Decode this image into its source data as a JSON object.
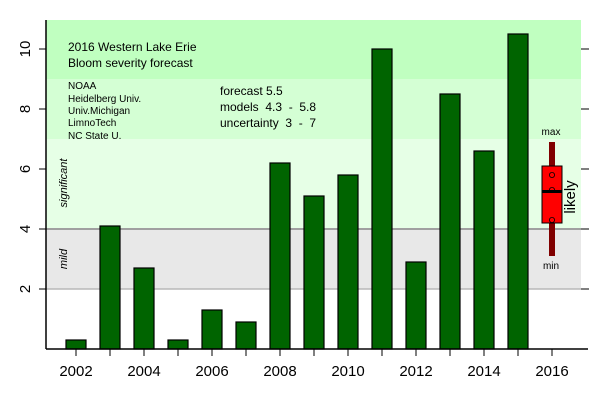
{
  "chart_data": {
    "type": "bar",
    "title": "2016 Western Lake Erie",
    "subtitle": "Bloom severity forecast",
    "xlabel": "",
    "ylabel": "",
    "categories": [
      "2002",
      "2003",
      "2004",
      "2005",
      "2006",
      "2007",
      "2008",
      "2009",
      "2010",
      "2011",
      "2012",
      "2013",
      "2014",
      "2015",
      "2016"
    ],
    "x_tick_labels": [
      "2002",
      "2004",
      "2006",
      "2008",
      "2010",
      "2012",
      "2014",
      "2016"
    ],
    "y_ticks": [
      2,
      4,
      6,
      8,
      10
    ],
    "y_tick_labels": [
      "2",
      "4",
      "6",
      "8",
      "10"
    ],
    "ylim": [
      0,
      11
    ],
    "grid": false,
    "series": [
      {
        "name": "Bloom severity",
        "color": "#006400",
        "values": [
          0.3,
          4.1,
          2.7,
          0.3,
          1.3,
          0.9,
          6.2,
          5.1,
          5.8,
          10.0,
          2.9,
          8.5,
          6.6,
          10.5,
          null
        ]
      }
    ],
    "background_bands": [
      {
        "from": 0,
        "to": 2,
        "color": "#FFFFFF",
        "label": ""
      },
      {
        "from": 2,
        "to": 4,
        "color": "#E8E8E8",
        "label": "mild"
      },
      {
        "from": 4,
        "to": 7,
        "color": "#E6FFE6",
        "label": "significant"
      },
      {
        "from": 7,
        "to": 9,
        "color": "#D4FFD4",
        "label": ""
      },
      {
        "from": 9,
        "to": 11,
        "color": "#C0FFC0",
        "label": ""
      }
    ],
    "band_divider_color": "#A0A0A0",
    "forecast": {
      "year": "2016",
      "value": 5.5,
      "likely_range": [
        4.2,
        6.1
      ],
      "median": 5.25,
      "uncertainty_range": [
        3.1,
        6.9
      ],
      "model_points": [
        4.3,
        5.3,
        5.8
      ],
      "box_color": "#FF0000",
      "whisker_color": "#800000",
      "max_label": "max",
      "min_label": "min",
      "likely_label": "likely"
    },
    "annotations": {
      "contributors": [
        "NOAA",
        "Heidelberg Univ.",
        "Univ.Michigan",
        "LimnoTech",
        "NC State U."
      ],
      "forecast_line": "forecast 5.5",
      "models_line": "models  4.3  -  5.8",
      "uncertainty_line": "uncertainty  3  -  7"
    },
    "right_axis_ticks": [
      2,
      4,
      6,
      8,
      10
    ]
  }
}
